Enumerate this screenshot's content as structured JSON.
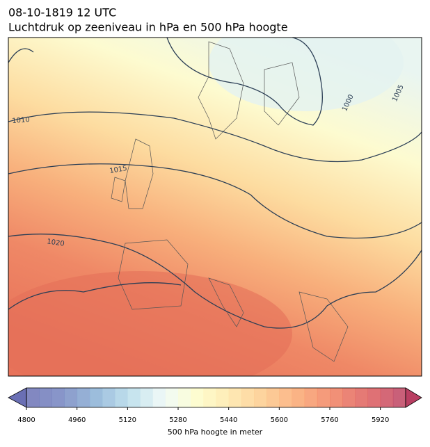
{
  "header": {
    "title": "08-10-1819 12 UTC",
    "subtitle": "Luchtdruk op zeeniveau in hPa en 500 hPa hoogte"
  },
  "map": {
    "isobar_labels": [
      1010,
      1015,
      1020,
      1000,
      1005
    ]
  },
  "colorbar": {
    "range": [
      4800,
      6000
    ],
    "step": 40,
    "colors": [
      "#6a6fb4",
      "#7484c0",
      "#8ab1d6",
      "#b6dcea",
      "#eef9f6",
      "#fefcc6",
      "#fee4a4",
      "#fdc587",
      "#f9a26d",
      "#ef7b5f",
      "#dc5a5c",
      "#b93f62"
    ],
    "ticks": [
      4800,
      4960,
      5120,
      5280,
      5440,
      5600,
      5760,
      5920
    ],
    "label": "500 hPa hoogte in meter"
  }
}
